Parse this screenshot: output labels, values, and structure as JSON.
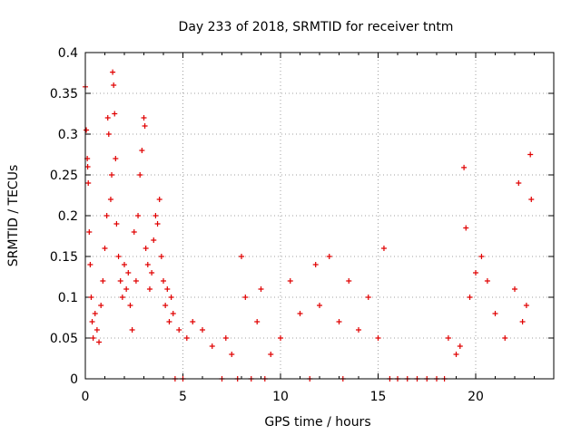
{
  "chart_data": {
    "type": "scatter",
    "title": "Day 233 of 2018, SRMTID for receiver tntm",
    "xlabel": "GPS time / hours",
    "ylabel": "SRMTID / TECUs",
    "xlim": [
      0,
      24
    ],
    "ylim": [
      0,
      0.4
    ],
    "xticks": [
      "0",
      "5",
      "10",
      "15",
      "20"
    ],
    "yticks": [
      "0",
      "0.05",
      "0.1",
      "0.15",
      "0.2",
      "0.25",
      "0.3",
      "0.35",
      "0.4"
    ],
    "grid": true,
    "marker": "+",
    "color": "#e00000",
    "series": [
      {
        "name": "SRMTID",
        "description": "dense scatter of SRMTID samples; representative points listed",
        "points": [
          [
            0.0,
            0.358
          ],
          [
            0.05,
            0.305
          ],
          [
            0.1,
            0.27
          ],
          [
            0.12,
            0.26
          ],
          [
            0.15,
            0.24
          ],
          [
            0.2,
            0.18
          ],
          [
            0.25,
            0.14
          ],
          [
            0.3,
            0.1
          ],
          [
            0.35,
            0.07
          ],
          [
            0.4,
            0.05
          ],
          [
            0.5,
            0.08
          ],
          [
            0.6,
            0.06
          ],
          [
            0.7,
            0.045
          ],
          [
            0.8,
            0.09
          ],
          [
            0.9,
            0.12
          ],
          [
            1.0,
            0.16
          ],
          [
            1.1,
            0.2
          ],
          [
            1.15,
            0.32
          ],
          [
            1.2,
            0.3
          ],
          [
            1.3,
            0.22
          ],
          [
            1.35,
            0.25
          ],
          [
            1.4,
            0.376
          ],
          [
            1.45,
            0.36
          ],
          [
            1.5,
            0.325
          ],
          [
            1.55,
            0.27
          ],
          [
            1.6,
            0.19
          ],
          [
            1.7,
            0.15
          ],
          [
            1.8,
            0.12
          ],
          [
            1.9,
            0.1
          ],
          [
            2.0,
            0.14
          ],
          [
            2.1,
            0.11
          ],
          [
            2.2,
            0.13
          ],
          [
            2.3,
            0.09
          ],
          [
            2.4,
            0.06
          ],
          [
            2.5,
            0.18
          ],
          [
            2.6,
            0.12
          ],
          [
            2.7,
            0.2
          ],
          [
            2.8,
            0.25
          ],
          [
            2.9,
            0.28
          ],
          [
            3.0,
            0.32
          ],
          [
            3.05,
            0.31
          ],
          [
            3.1,
            0.16
          ],
          [
            3.2,
            0.14
          ],
          [
            3.3,
            0.11
          ],
          [
            3.4,
            0.13
          ],
          [
            3.5,
            0.17
          ],
          [
            3.6,
            0.2
          ],
          [
            3.7,
            0.19
          ],
          [
            3.8,
            0.22
          ],
          [
            3.9,
            0.15
          ],
          [
            4.0,
            0.12
          ],
          [
            4.1,
            0.09
          ],
          [
            4.2,
            0.11
          ],
          [
            4.3,
            0.07
          ],
          [
            4.4,
            0.1
          ],
          [
            4.5,
            0.08
          ],
          [
            4.6,
            0.0
          ],
          [
            4.8,
            0.06
          ],
          [
            5.0,
            0.0
          ],
          [
            5.2,
            0.05
          ],
          [
            5.5,
            0.07
          ],
          [
            6.0,
            0.06
          ],
          [
            6.5,
            0.04
          ],
          [
            7.0,
            0.0
          ],
          [
            7.2,
            0.05
          ],
          [
            7.5,
            0.03
          ],
          [
            7.8,
            0.0
          ],
          [
            8.0,
            0.15
          ],
          [
            8.2,
            0.1
          ],
          [
            8.5,
            0.0
          ],
          [
            8.8,
            0.07
          ],
          [
            9.0,
            0.11
          ],
          [
            9.2,
            0.0
          ],
          [
            9.5,
            0.03
          ],
          [
            10.0,
            0.05
          ],
          [
            10.5,
            0.12
          ],
          [
            11.0,
            0.08
          ],
          [
            11.5,
            0.0
          ],
          [
            11.8,
            0.14
          ],
          [
            12.0,
            0.09
          ],
          [
            12.5,
            0.15
          ],
          [
            13.0,
            0.07
          ],
          [
            13.2,
            0.0
          ],
          [
            13.5,
            0.12
          ],
          [
            14.0,
            0.06
          ],
          [
            14.5,
            0.1
          ],
          [
            15.0,
            0.05
          ],
          [
            15.3,
            0.16
          ],
          [
            15.6,
            0.0
          ],
          [
            16.0,
            0.0
          ],
          [
            16.5,
            0.0
          ],
          [
            17.0,
            0.0
          ],
          [
            17.5,
            0.0
          ],
          [
            18.0,
            0.0
          ],
          [
            18.4,
            0.0
          ],
          [
            18.6,
            0.05
          ],
          [
            19.0,
            0.03
          ],
          [
            19.2,
            0.04
          ],
          [
            19.4,
            0.259
          ],
          [
            19.5,
            0.185
          ],
          [
            19.7,
            0.1
          ],
          [
            20.0,
            0.13
          ],
          [
            20.3,
            0.15
          ],
          [
            20.6,
            0.12
          ],
          [
            21.0,
            0.08
          ],
          [
            21.5,
            0.05
          ],
          [
            22.0,
            0.11
          ],
          [
            22.2,
            0.24
          ],
          [
            22.4,
            0.07
          ],
          [
            22.6,
            0.09
          ],
          [
            22.8,
            0.275
          ],
          [
            22.85,
            0.22
          ]
        ]
      }
    ]
  }
}
